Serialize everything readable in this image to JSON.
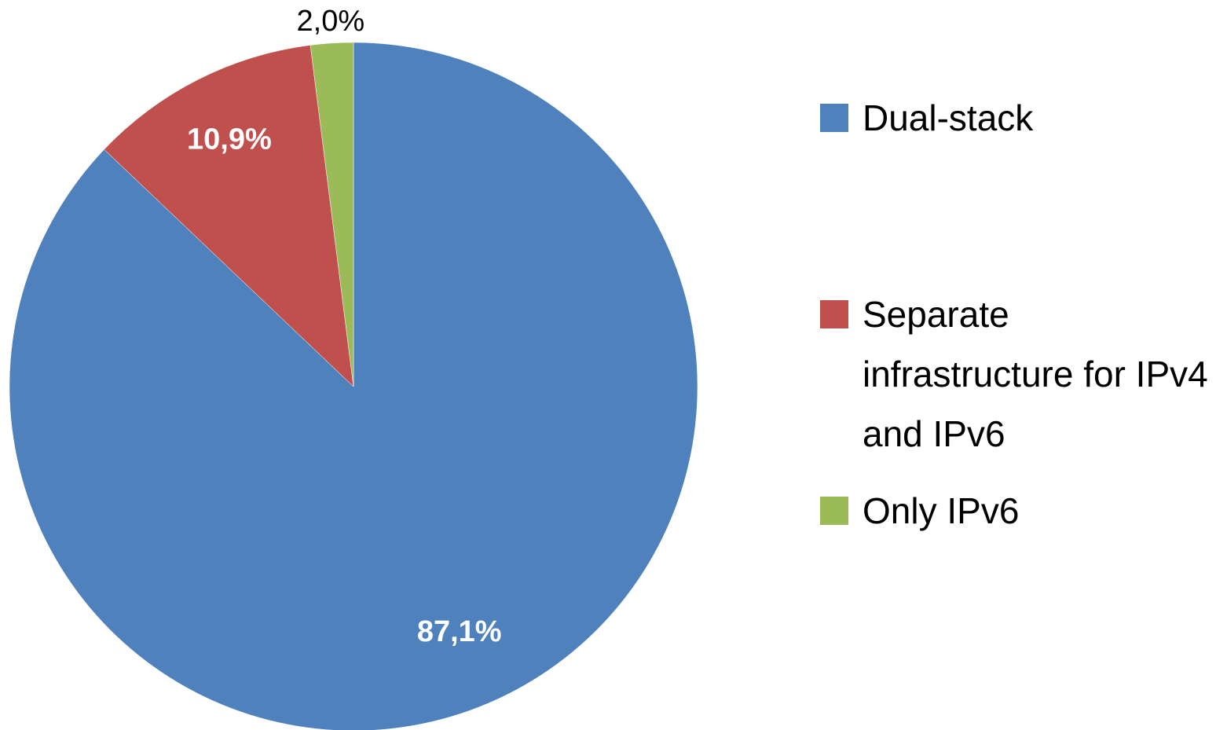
{
  "chart_data": {
    "type": "pie",
    "categories": [
      "Dual-stack",
      "Separate infrastructure for IPv4 and IPv6",
      "Only IPv6"
    ],
    "values": [
      87.1,
      10.9,
      2.0
    ],
    "value_labels": [
      "87,1%",
      "10,9%",
      "2,0%"
    ],
    "colors": [
      "#4f81bd",
      "#c0504d",
      "#9bbb59"
    ],
    "legend": "right"
  }
}
